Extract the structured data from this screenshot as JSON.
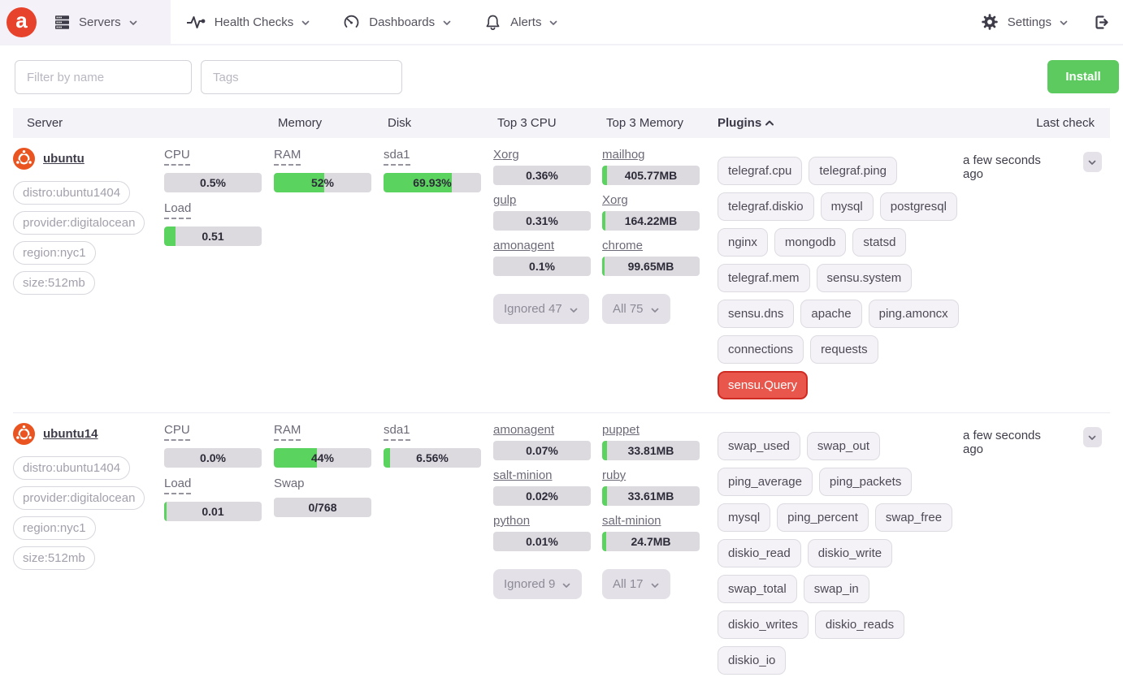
{
  "colors": {
    "brand_red": "#e7432c",
    "bar_green": "#5bd35f",
    "install_green": "#5dca60",
    "alert_red": "#e9564c",
    "alert_border_red": "#cf2b22",
    "nav_active_bg": "#f4f2f8",
    "header_bg": "#f4f3f8",
    "bar_track": "#dcdadf"
  },
  "nav": {
    "brand_letter": "a",
    "items": [
      {
        "label": "Servers",
        "icon": "servers-icon",
        "active": true
      },
      {
        "label": "Health Checks",
        "icon": "health-checks-icon",
        "active": false
      },
      {
        "label": "Dashboards",
        "icon": "dashboards-icon",
        "active": false
      },
      {
        "label": "Alerts",
        "icon": "alerts-icon",
        "active": false
      }
    ],
    "settings_label": "Settings"
  },
  "filters": {
    "name_placeholder": "Filter by name",
    "tags_placeholder": "Tags",
    "install_label": "Install"
  },
  "table": {
    "headers": [
      "Server",
      "Memory",
      "Disk",
      "Top 3 CPU",
      "Top 3 Memory",
      "Plugins",
      "Last check"
    ],
    "sorted_by": "Plugins",
    "sort_direction": "asc"
  },
  "servers": [
    {
      "name": "ubuntu",
      "os": "ubuntu",
      "tags": [
        "distro:ubuntu1404",
        "provider:digitalocean",
        "region:nyc1",
        "size:512mb"
      ],
      "cpu_metrics": [
        {
          "label": "CPU",
          "value": "0.5%",
          "fill_pct": 0,
          "dashed": true
        },
        {
          "label": "Load",
          "value": "0.51",
          "fill_pct": 12,
          "dashed": true
        }
      ],
      "memory_metrics": [
        {
          "label": "RAM",
          "value": "52%",
          "fill_pct": 52,
          "dashed": true
        }
      ],
      "disk_metrics": [
        {
          "label": "sda1",
          "value": "69.93%",
          "fill_pct": 70,
          "dashed": true
        }
      ],
      "top_cpu": {
        "items": [
          {
            "name": "Xorg",
            "value": "0.36%",
            "fill_pct": 0
          },
          {
            "name": "gulp",
            "value": "0.31%",
            "fill_pct": 0
          },
          {
            "name": "amonagent",
            "value": "0.1%",
            "fill_pct": 0
          }
        ],
        "more_label": "Ignored 47"
      },
      "top_memory": {
        "items": [
          {
            "name": "mailhog",
            "value": "405.77MB",
            "fill_pct": 5
          },
          {
            "name": "Xorg",
            "value": "164.22MB",
            "fill_pct": 3
          },
          {
            "name": "chrome",
            "value": "99.65MB",
            "fill_pct": 2
          }
        ],
        "more_label": "All 75"
      },
      "plugins": [
        {
          "label": "telegraf.cpu",
          "alert": false
        },
        {
          "label": "telegraf.ping",
          "alert": false
        },
        {
          "label": "telegraf.diskio",
          "alert": false
        },
        {
          "label": "mysql",
          "alert": false
        },
        {
          "label": "postgresql",
          "alert": false
        },
        {
          "label": "nginx",
          "alert": false
        },
        {
          "label": "mongodb",
          "alert": false
        },
        {
          "label": "statsd",
          "alert": false
        },
        {
          "label": "telegraf.mem",
          "alert": false
        },
        {
          "label": "sensu.system",
          "alert": false
        },
        {
          "label": "sensu.dns",
          "alert": false
        },
        {
          "label": "apache",
          "alert": false
        },
        {
          "label": "ping.amoncx",
          "alert": false
        },
        {
          "label": "connections",
          "alert": false
        },
        {
          "label": "requests",
          "alert": false
        },
        {
          "label": "sensu.Query",
          "alert": true
        }
      ],
      "last_check": "a few seconds ago"
    },
    {
      "name": "ubuntu14",
      "os": "ubuntu",
      "tags": [
        "distro:ubuntu1404",
        "provider:digitalocean",
        "region:nyc1",
        "size:512mb"
      ],
      "cpu_metrics": [
        {
          "label": "CPU",
          "value": "0.0%",
          "fill_pct": 0,
          "dashed": true
        },
        {
          "label": "Load",
          "value": "0.01",
          "fill_pct": 2,
          "dashed": true
        }
      ],
      "memory_metrics": [
        {
          "label": "RAM",
          "value": "44%",
          "fill_pct": 44,
          "dashed": true
        },
        {
          "label": "Swap",
          "value": "0/768",
          "fill_pct": 0,
          "dashed": false
        }
      ],
      "disk_metrics": [
        {
          "label": "sda1",
          "value": "6.56%",
          "fill_pct": 7,
          "dashed": true
        }
      ],
      "top_cpu": {
        "items": [
          {
            "name": "amonagent",
            "value": "0.07%",
            "fill_pct": 0
          },
          {
            "name": "salt-minion",
            "value": "0.02%",
            "fill_pct": 0
          },
          {
            "name": "python",
            "value": "0.01%",
            "fill_pct": 0
          }
        ],
        "more_label": "Ignored 9"
      },
      "top_memory": {
        "items": [
          {
            "name": "puppet",
            "value": "33.81MB",
            "fill_pct": 5
          },
          {
            "name": "ruby",
            "value": "33.61MB",
            "fill_pct": 5
          },
          {
            "name": "salt-minion",
            "value": "24.7MB",
            "fill_pct": 4
          }
        ],
        "more_label": "All 17"
      },
      "plugins": [
        {
          "label": "swap_used",
          "alert": false
        },
        {
          "label": "swap_out",
          "alert": false
        },
        {
          "label": "ping_average",
          "alert": false
        },
        {
          "label": "ping_packets",
          "alert": false
        },
        {
          "label": "mysql",
          "alert": false
        },
        {
          "label": "ping_percent",
          "alert": false
        },
        {
          "label": "swap_free",
          "alert": false
        },
        {
          "label": "diskio_read",
          "alert": false
        },
        {
          "label": "diskio_write",
          "alert": false
        },
        {
          "label": "swap_total",
          "alert": false
        },
        {
          "label": "swap_in",
          "alert": false
        },
        {
          "label": "diskio_writes",
          "alert": false
        },
        {
          "label": "diskio_reads",
          "alert": false
        },
        {
          "label": "diskio_io",
          "alert": false
        }
      ],
      "last_check": "a few seconds ago"
    }
  ]
}
